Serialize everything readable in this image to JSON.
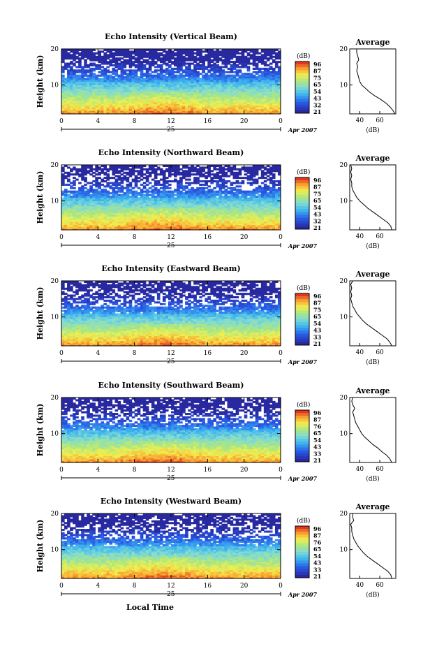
{
  "figure": {
    "xlabel": "Local Time",
    "date_label": "25",
    "month_label": "Apr 2007"
  },
  "chart_data": [
    {
      "type": "heatmap",
      "title": "Echo Intensity (Vertical Beam)",
      "ylabel": "Height (km)",
      "xlim": [
        0,
        24
      ],
      "ylim": [
        2,
        20
      ],
      "xticks": [
        "0",
        "4",
        "8",
        "12",
        "16",
        "20",
        "0"
      ],
      "yticks": [
        "10",
        "20"
      ],
      "colorbar": {
        "unit": "(dB)",
        "ticks": [
          "96",
          "87",
          "75",
          "65",
          "54",
          "43",
          "32",
          "21"
        ]
      },
      "average": {
        "title": "Average",
        "xlabel": "(dB)",
        "xticks": [
          "40",
          "60"
        ],
        "yticks": [
          "10",
          "20"
        ],
        "profile": [
          [
            2,
            75
          ],
          [
            3,
            73
          ],
          [
            4,
            70
          ],
          [
            5,
            66
          ],
          [
            6,
            61
          ],
          [
            7,
            55
          ],
          [
            8,
            50
          ],
          [
            9,
            46
          ],
          [
            10,
            42
          ],
          [
            11,
            40
          ],
          [
            12,
            39
          ],
          [
            13,
            38
          ],
          [
            14,
            37
          ],
          [
            15,
            38
          ],
          [
            16,
            37
          ],
          [
            17,
            39
          ],
          [
            18,
            38
          ],
          [
            19,
            37
          ],
          [
            20,
            37
          ]
        ]
      }
    },
    {
      "type": "heatmap",
      "title": "Echo Intensity (Northward Beam)",
      "ylabel": "Height (km)",
      "xlim": [
        0,
        24
      ],
      "ylim": [
        2,
        20
      ],
      "xticks": [
        "0",
        "4",
        "8",
        "12",
        "16",
        "20",
        "0"
      ],
      "yticks": [
        "10",
        "20"
      ],
      "colorbar": {
        "unit": "(dB)",
        "ticks": [
          "96",
          "87",
          "75",
          "65",
          "54",
          "43",
          "32",
          "21"
        ]
      },
      "average": {
        "title": "Average",
        "xlabel": "(dB)",
        "xticks": [
          "40",
          "60"
        ],
        "yticks": [
          "10",
          "20"
        ],
        "profile": [
          [
            2,
            72
          ],
          [
            3,
            71
          ],
          [
            4,
            68
          ],
          [
            5,
            63
          ],
          [
            6,
            58
          ],
          [
            7,
            53
          ],
          [
            8,
            48
          ],
          [
            9,
            44
          ],
          [
            10,
            40
          ],
          [
            11,
            37
          ],
          [
            12,
            35
          ],
          [
            13,
            33
          ],
          [
            14,
            32
          ],
          [
            15,
            32
          ],
          [
            16,
            31
          ],
          [
            17,
            32
          ],
          [
            18,
            31
          ],
          [
            19,
            32
          ],
          [
            20,
            31
          ]
        ]
      }
    },
    {
      "type": "heatmap",
      "title": "Echo Intensity (Eastward Beam)",
      "ylabel": "Height (km)",
      "xlim": [
        0,
        24
      ],
      "ylim": [
        2,
        20
      ],
      "xticks": [
        "0",
        "4",
        "8",
        "12",
        "16",
        "20",
        "0"
      ],
      "yticks": [
        "10",
        "20"
      ],
      "colorbar": {
        "unit": "(dB)",
        "ticks": [
          "96",
          "87",
          "75",
          "65",
          "54",
          "43",
          "33",
          "21"
        ]
      },
      "average": {
        "title": "Average",
        "xlabel": "(dB)",
        "xticks": [
          "40",
          "60"
        ],
        "yticks": [
          "10",
          "20"
        ],
        "profile": [
          [
            2,
            72
          ],
          [
            3,
            70
          ],
          [
            4,
            67
          ],
          [
            5,
            62
          ],
          [
            6,
            57
          ],
          [
            7,
            52
          ],
          [
            8,
            47
          ],
          [
            9,
            43
          ],
          [
            10,
            40
          ],
          [
            11,
            37
          ],
          [
            12,
            35
          ],
          [
            13,
            33
          ],
          [
            14,
            32
          ],
          [
            15,
            31
          ],
          [
            16,
            32
          ],
          [
            17,
            31
          ],
          [
            18,
            32
          ],
          [
            19,
            31
          ],
          [
            20,
            33
          ]
        ]
      }
    },
    {
      "type": "heatmap",
      "title": "Echo Intensity (Southward Beam)",
      "ylabel": "Height (km)",
      "xlim": [
        0,
        24
      ],
      "ylim": [
        2,
        20
      ],
      "xticks": [
        "0",
        "4",
        "8",
        "12",
        "16",
        "20",
        "0"
      ],
      "yticks": [
        "10",
        "20"
      ],
      "colorbar": {
        "unit": "(dB)",
        "ticks": [
          "96",
          "87",
          "76",
          "65",
          "54",
          "43",
          "33",
          "21"
        ]
      },
      "average": {
        "title": "Average",
        "xlabel": "(dB)",
        "xticks": [
          "40",
          "60"
        ],
        "yticks": [
          "10",
          "20"
        ],
        "profile": [
          [
            2,
            72
          ],
          [
            3,
            70
          ],
          [
            4,
            67
          ],
          [
            5,
            62
          ],
          [
            6,
            58
          ],
          [
            7,
            53
          ],
          [
            8,
            49
          ],
          [
            9,
            45
          ],
          [
            10,
            42
          ],
          [
            11,
            40
          ],
          [
            12,
            38
          ],
          [
            13,
            36
          ],
          [
            14,
            35
          ],
          [
            15,
            34
          ],
          [
            16,
            33
          ],
          [
            17,
            35
          ],
          [
            18,
            33
          ],
          [
            19,
            32
          ],
          [
            20,
            33
          ]
        ]
      }
    },
    {
      "type": "heatmap",
      "title": "Echo Intensity (Westward Beam)",
      "ylabel": "Height (km)",
      "xlim": [
        0,
        24
      ],
      "ylim": [
        2,
        20
      ],
      "xticks": [
        "0",
        "4",
        "8",
        "12",
        "16",
        "20",
        "0"
      ],
      "yticks": [
        "10",
        "20"
      ],
      "colorbar": {
        "unit": "(dB)",
        "ticks": [
          "96",
          "87",
          "76",
          "65",
          "54",
          "43",
          "33",
          "21"
        ]
      },
      "average": {
        "title": "Average",
        "xlabel": "(dB)",
        "xticks": [
          "40",
          "60"
        ],
        "yticks": [
          "10",
          "20"
        ],
        "profile": [
          [
            2,
            72
          ],
          [
            3,
            71
          ],
          [
            4,
            68
          ],
          [
            5,
            63
          ],
          [
            6,
            58
          ],
          [
            7,
            53
          ],
          [
            8,
            48
          ],
          [
            9,
            44
          ],
          [
            10,
            41
          ],
          [
            11,
            38
          ],
          [
            12,
            36
          ],
          [
            13,
            34
          ],
          [
            14,
            33
          ],
          [
            15,
            32
          ],
          [
            16,
            32
          ],
          [
            17,
            31
          ],
          [
            18,
            34
          ],
          [
            19,
            33
          ],
          [
            20,
            33
          ]
        ]
      }
    }
  ]
}
